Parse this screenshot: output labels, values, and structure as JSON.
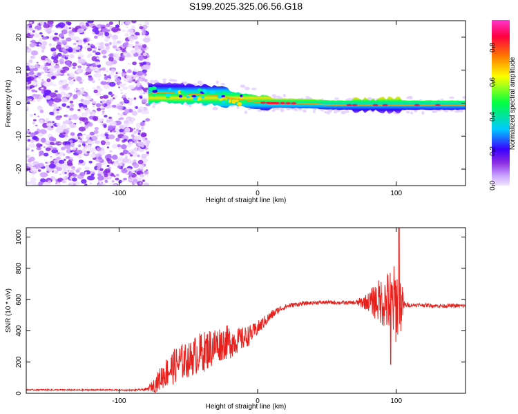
{
  "figure_title": "S199.2025.325.06.56.G18",
  "chart_data": [
    {
      "type": "heatmap",
      "title": "S199.2025.325.06.56.G18",
      "xlabel": "Height of straight line (km)",
      "ylabel": "Frequency (Hz)",
      "xlim": [
        -167,
        150
      ],
      "ylim": [
        -25,
        25
      ],
      "xticks": [
        -100,
        0,
        100
      ],
      "yticks": [
        -20,
        -10,
        0,
        10,
        20
      ],
      "grid": false,
      "colorbar": {
        "label": "Normalized spectral amplitude",
        "range": [
          0,
          0.96
        ],
        "ticks": [
          0.0,
          0.2,
          0.4,
          0.6,
          0.8
        ],
        "colormap": [
          "#f2e6ff",
          "#8a2be2",
          "#3a00ff",
          "#00c8ff",
          "#00ff40",
          "#ffff00",
          "#ff7a00",
          "#ff0040",
          "#ff33cc"
        ]
      },
      "regions": [
        {
          "label": "noise",
          "x_range": [
            -167,
            -79
          ],
          "freq_range": [
            -25,
            25
          ],
          "amplitude": 0.1
        },
        {
          "label": "ridge",
          "x_range": [
            -79,
            150
          ],
          "amplitude_peak": 0.9
        }
      ],
      "ridge_centerline": {
        "x": [
          -79,
          -70,
          -60,
          -50,
          -40,
          -30,
          -20,
          -10,
          0,
          10,
          20,
          30,
          40,
          50,
          60,
          70,
          80,
          90,
          100,
          110,
          120,
          130,
          140,
          150
        ],
        "freq_hz": [
          2.8,
          3.3,
          3.0,
          2.8,
          2.6,
          2.3,
          1.5,
          0.9,
          0.2,
          0.0,
          0.0,
          -0.1,
          -0.2,
          -0.5,
          -0.6,
          -0.6,
          -0.6,
          -0.6,
          -0.6,
          -0.6,
          -0.6,
          -0.6,
          -0.6,
          -0.6
        ]
      }
    },
    {
      "type": "line",
      "title": "",
      "xlabel": "Height of straight line (km)",
      "ylabel": "SNR (10 * v/v)",
      "xlim": [
        -167,
        150
      ],
      "ylim": [
        0,
        1060
      ],
      "xticks": [
        -100,
        0,
        100
      ],
      "yticks": [
        0,
        200,
        400,
        600,
        800,
        1000
      ],
      "grid": false,
      "series": [
        {
          "name": "SNR",
          "color": "#e8201c",
          "x": [
            -167,
            -150,
            -130,
            -110,
            -90,
            -80,
            -74,
            -68,
            -62,
            -56,
            -50,
            -44,
            -38,
            -32,
            -26,
            -20,
            -14,
            -8,
            -2,
            4,
            10,
            16,
            22,
            28,
            34,
            40,
            50,
            60,
            70,
            80,
            85,
            90,
            95,
            100,
            103,
            106,
            110,
            120,
            130,
            140,
            150
          ],
          "values": [
            22,
            22,
            21,
            22,
            20,
            25,
            55,
            120,
            160,
            200,
            210,
            250,
            270,
            300,
            320,
            330,
            340,
            360,
            400,
            450,
            500,
            540,
            560,
            570,
            575,
            580,
            582,
            580,
            580,
            585,
            590,
            590,
            580,
            575,
            570,
            565,
            565,
            565,
            560,
            560,
            560
          ],
          "noise_amplitude": [
            4,
            4,
            4,
            4,
            4,
            8,
            50,
            90,
            110,
            120,
            110,
            130,
            130,
            130,
            110,
            110,
            80,
            70,
            50,
            40,
            30,
            20,
            15,
            15,
            12,
            12,
            12,
            12,
            12,
            60,
            120,
            160,
            220,
            260,
            220,
            20,
            12,
            12,
            12,
            12,
            12
          ]
        }
      ],
      "peak": {
        "x": 102,
        "value": 1060
      },
      "dip": {
        "x": 96,
        "value": 185
      }
    }
  ]
}
